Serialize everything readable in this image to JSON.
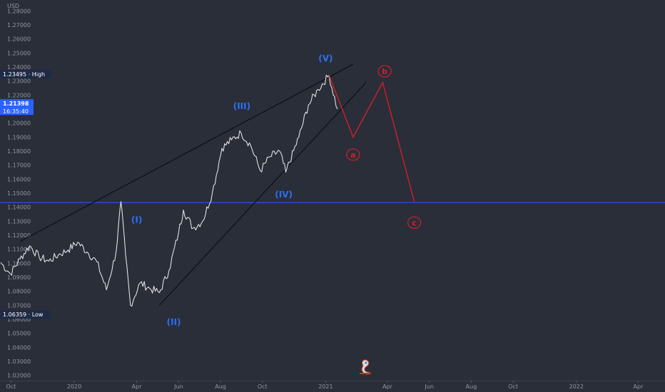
{
  "chart_data": {
    "type": "line",
    "currency": "USD",
    "y_ticks": [
      "1.28000",
      "1.27000",
      "1.26000",
      "1.25000",
      "1.24000",
      "1.23000",
      "1.22000",
      "1.21000",
      "1.20000",
      "1.19000",
      "1.18000",
      "1.17000",
      "1.16000",
      "1.15000",
      "1.14000",
      "1.13000",
      "1.12000",
      "1.11000",
      "1.10000",
      "1.09000",
      "1.08000",
      "1.07000",
      "1.06000",
      "1.05000",
      "1.04000",
      "1.03000",
      "1.02000"
    ],
    "ylim": [
      1.0163,
      1.2878
    ],
    "x_ticks": [
      {
        "label": "Oct",
        "date": "2019-10-01"
      },
      {
        "label": "2020",
        "date": "2020-01-01"
      },
      {
        "label": "Apr",
        "date": "2020-04-01"
      },
      {
        "label": "Jun",
        "date": "2020-06-01"
      },
      {
        "label": "Aug",
        "date": "2020-08-01"
      },
      {
        "label": "Oct",
        "date": "2020-10-01"
      },
      {
        "label": "2021",
        "date": "2021-01-01"
      },
      {
        "label": "Apr",
        "date": "2021-04-01"
      },
      {
        "label": "Jun",
        "date": "2021-06-01"
      },
      {
        "label": "Aug",
        "date": "2021-08-01"
      },
      {
        "label": "Oct",
        "date": "2021-10-01"
      },
      {
        "label": "2022",
        "date": "2022-01-01"
      },
      {
        "label": "Apr",
        "date": "2022-04-01"
      }
    ],
    "xlim": [
      "2019-09-15",
      "2022-05-10"
    ],
    "series": [
      {
        "points": [
          [
            "2019-09-16",
            1.1005
          ],
          [
            "2019-09-30",
            1.0925
          ],
          [
            "2019-10-14",
            1.103
          ],
          [
            "2019-10-28",
            1.1125
          ],
          [
            "2019-11-11",
            1.1045
          ],
          [
            "2019-11-25",
            1.1015
          ],
          [
            "2019-12-09",
            1.106
          ],
          [
            "2019-12-23",
            1.1095
          ],
          [
            "2020-01-06",
            1.115
          ],
          [
            "2020-01-20",
            1.108
          ],
          [
            "2020-02-03",
            1.101
          ],
          [
            "2020-02-17",
            1.081
          ],
          [
            "2020-03-02",
            1.108
          ],
          [
            "2020-03-09",
            1.144
          ],
          [
            "2020-03-16",
            1.105
          ],
          [
            "2020-03-23",
            1.07
          ],
          [
            "2020-04-06",
            1.086
          ],
          [
            "2020-04-20",
            1.082
          ],
          [
            "2020-05-04",
            1.079
          ],
          [
            "2020-05-18",
            1.095
          ],
          [
            "2020-06-01",
            1.122
          ],
          [
            "2020-06-08",
            1.138
          ],
          [
            "2020-06-22",
            1.125
          ],
          [
            "2020-07-06",
            1.13
          ],
          [
            "2020-07-20",
            1.15
          ],
          [
            "2020-08-03",
            1.182
          ],
          [
            "2020-08-17",
            1.188
          ],
          [
            "2020-08-31",
            1.193
          ],
          [
            "2020-09-14",
            1.184
          ],
          [
            "2020-09-28",
            1.166
          ],
          [
            "2020-10-12",
            1.176
          ],
          [
            "2020-10-26",
            1.18
          ],
          [
            "2020-11-04",
            1.165
          ],
          [
            "2020-11-23",
            1.19
          ],
          [
            "2020-12-07",
            1.213
          ],
          [
            "2020-12-21",
            1.224
          ],
          [
            "2021-01-06",
            1.234
          ],
          [
            "2021-01-18",
            1.21
          ]
        ]
      }
    ],
    "high": {
      "label": "High",
      "value": "1.23495",
      "y": 1.23495
    },
    "low": {
      "label": "Low",
      "value": "1.06359",
      "y": 1.06359
    },
    "current": {
      "value": "1.21398",
      "y": 1.21398,
      "countdown": "16:35:40"
    },
    "support_line": {
      "y": 1.1433,
      "color": "#2454ff"
    },
    "trend_lines": [
      {
        "from": [
          "2019-10-14",
          1.1155
        ],
        "to": [
          "2021-02-10",
          1.242
        ]
      },
      {
        "from": [
          "2020-05-04",
          1.07
        ],
        "to": [
          "2021-03-01",
          1.229
        ]
      }
    ],
    "waves": [
      {
        "label": "(I)",
        "date": "2020-04-01",
        "y": 1.129
      },
      {
        "label": "(II)",
        "date": "2020-05-25",
        "y": 1.056
      },
      {
        "label": "(III)",
        "date": "2020-09-01",
        "y": 1.21
      },
      {
        "label": "(IV)",
        "date": "2020-11-01",
        "y": 1.147
      },
      {
        "label": "(V)",
        "date": "2021-01-01",
        "y": 1.244
      }
    ],
    "projection": {
      "points": [
        [
          "2021-01-06",
          1.234
        ],
        [
          "2021-02-10",
          1.19
        ],
        [
          "2021-03-25",
          1.229
        ],
        [
          "2021-05-10",
          1.144
        ]
      ],
      "color": "#d11f2a",
      "labels": [
        {
          "label": "a",
          "date": "2021-02-10",
          "y": 1.1775
        },
        {
          "label": "b",
          "date": "2021-03-28",
          "y": 1.237
        },
        {
          "label": "c",
          "date": "2021-05-10",
          "y": 1.129
        }
      ]
    }
  },
  "colors": {
    "background": "#2a2e39",
    "price_line": "#e0e0e0",
    "trend_line": "#0f0f14",
    "wave_label": "#2c6ff5",
    "price_tag": "#2962ff",
    "extreme_tag": "#1f2a44"
  },
  "logo": {
    "icon": "seahorse-logo-icon"
  }
}
